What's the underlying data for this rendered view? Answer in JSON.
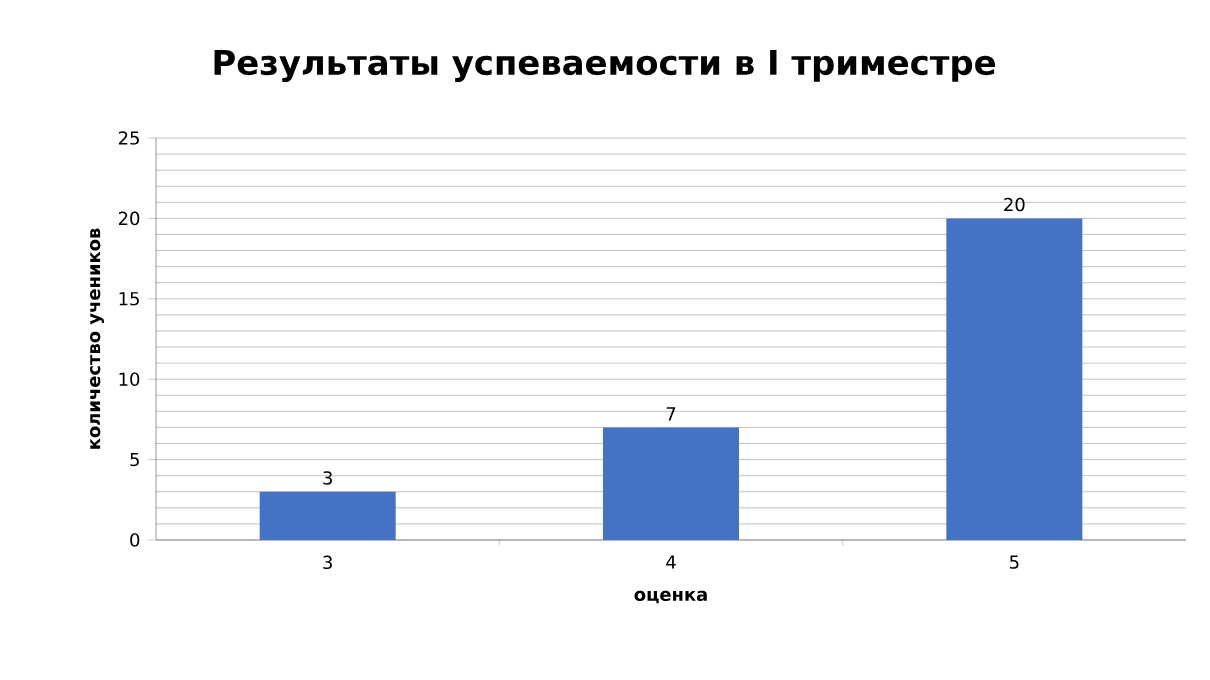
{
  "chart_data": {
    "type": "bar",
    "title": "Результаты успеваемости в I триместре",
    "xlabel": "оценка",
    "ylabel": "количество учеников",
    "categories": [
      "3",
      "4",
      "5"
    ],
    "values": [
      3,
      7,
      20
    ],
    "color": "#4472c4",
    "ylim": [
      0,
      25
    ],
    "yticks": [
      0,
      5,
      10,
      15,
      20,
      25
    ],
    "grid": "y",
    "data_labels": true
  }
}
